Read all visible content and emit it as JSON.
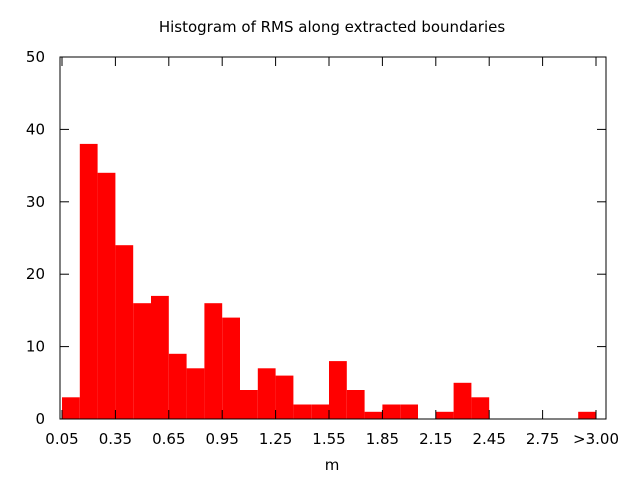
{
  "chart_data": {
    "type": "bar",
    "title": "Histogram of RMS along extracted boundaries",
    "xlabel": "m",
    "ylabel": "",
    "ylim": [
      0,
      50
    ],
    "y_ticks": [
      "0",
      "10",
      "20",
      "30",
      "40",
      "50"
    ],
    "x_ticks": [
      "0.05",
      "0.35",
      "0.65",
      "0.95",
      "1.25",
      "1.55",
      "1.85",
      "2.15",
      "2.45",
      "2.75",
      ">3.00"
    ],
    "bar_color": "#ff0000",
    "grid": false,
    "legend": "none",
    "categories": [
      "0.05",
      "0.15",
      "0.25",
      "0.35",
      "0.45",
      "0.55",
      "0.65",
      "0.75",
      "0.85",
      "0.95",
      "1.05",
      "1.15",
      "1.25",
      "1.35",
      "1.45",
      "1.55",
      "1.65",
      "1.75",
      "1.85",
      "1.95",
      "2.05",
      "2.15",
      "2.25",
      "2.35",
      "2.45",
      "2.55",
      "2.65",
      "2.75",
      "2.85",
      ">3.00"
    ],
    "values": [
      3,
      38,
      34,
      24,
      16,
      17,
      9,
      7,
      16,
      14,
      4,
      7,
      6,
      2,
      2,
      8,
      4,
      1,
      2,
      2,
      0,
      1,
      5,
      3,
      0,
      0,
      0,
      0,
      0,
      1
    ]
  }
}
